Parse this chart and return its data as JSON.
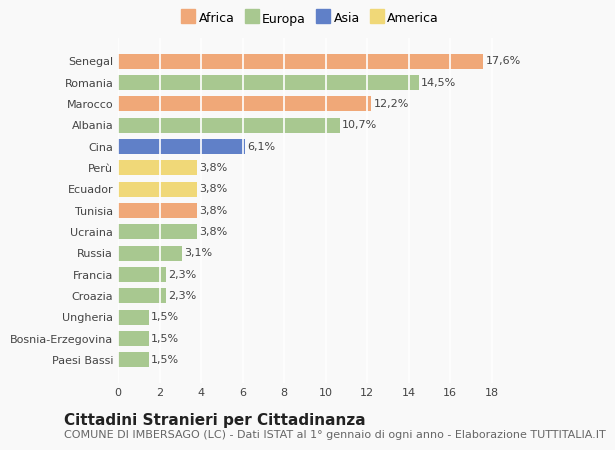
{
  "categories": [
    "Senegal",
    "Romania",
    "Marocco",
    "Albania",
    "Cina",
    "Perù",
    "Ecuador",
    "Tunisia",
    "Ucraina",
    "Russia",
    "Francia",
    "Croazia",
    "Ungheria",
    "Bosnia-Erzegovina",
    "Paesi Bassi"
  ],
  "values": [
    17.6,
    14.5,
    12.2,
    10.7,
    6.1,
    3.8,
    3.8,
    3.8,
    3.8,
    3.1,
    2.3,
    2.3,
    1.5,
    1.5,
    1.5
  ],
  "labels": [
    "17,6%",
    "14,5%",
    "12,2%",
    "10,7%",
    "6,1%",
    "3,8%",
    "3,8%",
    "3,8%",
    "3,8%",
    "3,1%",
    "2,3%",
    "2,3%",
    "1,5%",
    "1,5%",
    "1,5%"
  ],
  "continents": [
    "Africa",
    "Europa",
    "Africa",
    "Europa",
    "Asia",
    "America",
    "America",
    "Africa",
    "Europa",
    "Europa",
    "Europa",
    "Europa",
    "Europa",
    "Europa",
    "Europa"
  ],
  "colors": {
    "Africa": "#f0a878",
    "Europa": "#a8c890",
    "Asia": "#6080c8",
    "America": "#f0d878"
  },
  "legend_order": [
    "Africa",
    "Europa",
    "Asia",
    "America"
  ],
  "title": "Cittadini Stranieri per Cittadinanza",
  "subtitle": "COMUNE DI IMBERSAGO (LC) - Dati ISTAT al 1° gennaio di ogni anno - Elaborazione TUTTITALIA.IT",
  "xlim": [
    0,
    18.5
  ],
  "xticks": [
    0,
    2,
    4,
    6,
    8,
    10,
    12,
    14,
    16,
    18
  ],
  "background_color": "#f9f9f9",
  "grid_color": "#ffffff",
  "title_fontsize": 11,
  "subtitle_fontsize": 8,
  "label_fontsize": 8,
  "tick_fontsize": 8,
  "legend_fontsize": 9,
  "bar_height": 0.7
}
